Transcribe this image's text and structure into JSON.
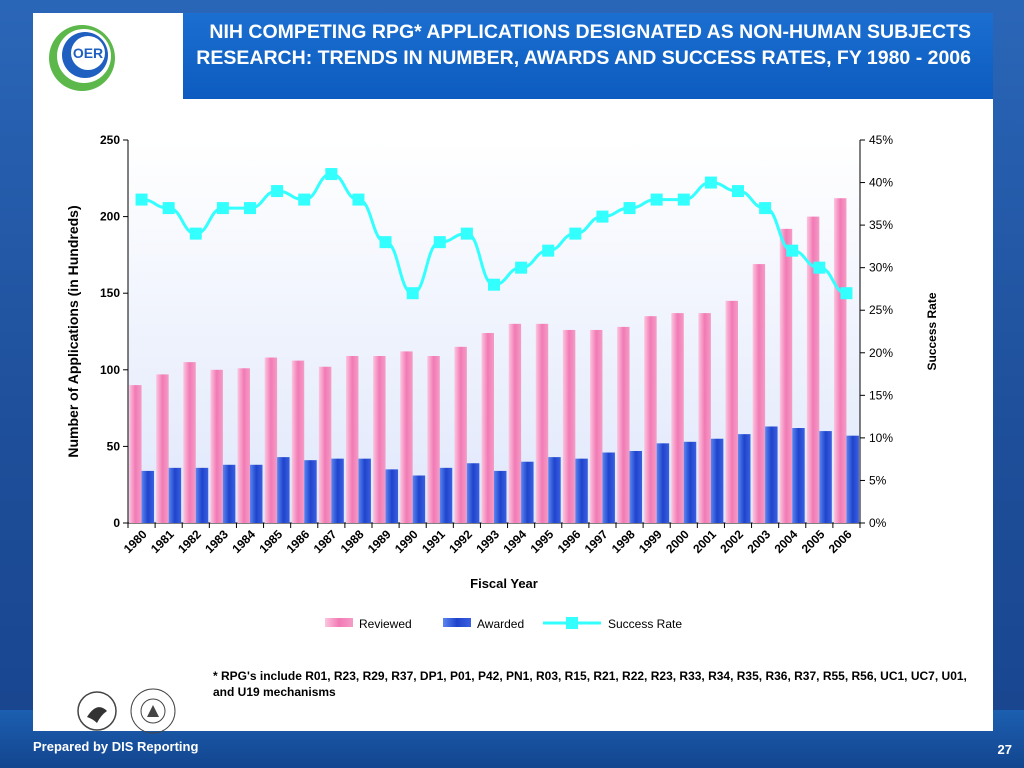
{
  "slide": {
    "title": "NIH COMPETING RPG* APPLICATIONS DESIGNATED AS NON-HUMAN SUBJECTS RESEARCH: TRENDS IN NUMBER, AWARDS AND SUCCESS RATES, FY 1980 - 2006",
    "logo_text": "OER",
    "footnote": "* RPG's include R01, R23, R29, R37, DP1, P01, P42, PN1, R03, R15, R21, R22, R23, R33, R34, R35, R36, R37, R55, R56, UC1, UC7, U01, and U19 mechanisms",
    "footer": "Prepared by DIS Reporting",
    "page_number": "27",
    "colors": {
      "reviewed": "#f27ab5",
      "awarded": "#1f44cc",
      "success_rate": "#33ffff",
      "title_band": "#0d5bc0"
    }
  },
  "chart_data": {
    "type": "bar",
    "categories": [
      "1980",
      "1981",
      "1982",
      "1983",
      "1984",
      "1985",
      "1986",
      "1987",
      "1988",
      "1989",
      "1990",
      "1991",
      "1992",
      "1993",
      "1994",
      "1995",
      "1996",
      "1997",
      "1998",
      "1999",
      "2000",
      "2001",
      "2002",
      "2003",
      "2004",
      "2005",
      "2006"
    ],
    "series": [
      {
        "name": "Reviewed",
        "type": "bar",
        "axis": "left",
        "values": [
          90,
          97,
          105,
          100,
          101,
          108,
          106,
          102,
          109,
          109,
          112,
          109,
          115,
          124,
          130,
          130,
          126,
          126,
          128,
          135,
          137,
          137,
          145,
          169,
          192,
          200,
          212
        ]
      },
      {
        "name": "Awarded",
        "type": "bar",
        "axis": "left",
        "values": [
          34,
          36,
          36,
          38,
          38,
          43,
          41,
          42,
          42,
          35,
          31,
          36,
          39,
          34,
          40,
          43,
          42,
          46,
          47,
          52,
          53,
          55,
          58,
          63,
          62,
          60,
          57
        ]
      },
      {
        "name": "Success Rate",
        "type": "line",
        "axis": "right",
        "values": [
          38,
          37,
          34,
          37,
          37,
          39,
          38,
          41,
          38,
          33,
          27,
          33,
          34,
          28,
          30,
          32,
          34,
          36,
          37,
          38,
          38,
          40,
          39,
          37,
          32,
          30,
          27
        ]
      }
    ],
    "xlabel": "Fiscal Year",
    "ylabel": "Number of Applications (in Hundreds)",
    "y2label": "Success Rate",
    "ylim": [
      0,
      250
    ],
    "y2lim": [
      0,
      45
    ],
    "yticks": [
      "0",
      "50",
      "100",
      "150",
      "200",
      "250"
    ],
    "y2ticks": [
      "0%",
      "5%",
      "10%",
      "15%",
      "20%",
      "25%",
      "30%",
      "35%",
      "40%",
      "45%"
    ],
    "legend": [
      "Reviewed",
      "Awarded",
      "Success Rate"
    ],
    "legend_position": "bottom"
  }
}
